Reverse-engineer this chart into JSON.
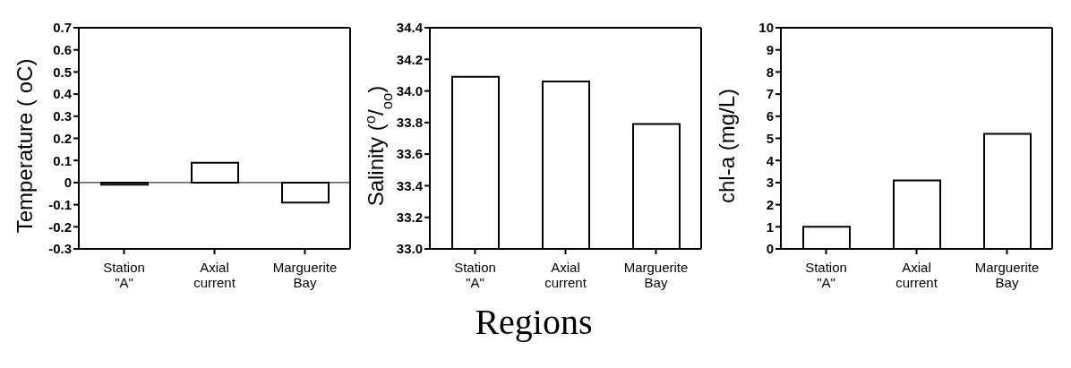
{
  "chart_data": [
    {
      "type": "bar",
      "ylabel": "Temperature ( oC)",
      "categories": [
        "Station \"A\"",
        "Axial current",
        "Marguerite Bay"
      ],
      "values": [
        -0.01,
        0.09,
        -0.09
      ],
      "color": "#ffffff",
      "ylim": [
        -0.3,
        0.7
      ],
      "yticks": [
        -0.3,
        -0.2,
        -0.1,
        0,
        0.1,
        0.2,
        0.3,
        0.4,
        0.5,
        0.6,
        0.7
      ],
      "ref_lines": [
        {
          "axis": "y",
          "value": 0
        }
      ],
      "grid": false,
      "legend": false
    },
    {
      "type": "bar",
      "ylabel": "Salinity ($^{o}$/$_{oo}$)",
      "xlabel": "Regions",
      "categories": [
        "Station \"A\"",
        "Axial current",
        "Marguerite Bay"
      ],
      "values": [
        34.09,
        34.06,
        33.79
      ],
      "color": "#ffffff",
      "ylim": [
        33.0,
        34.4
      ],
      "yticks": [
        {
          "value": 33.0,
          "label": "33.0"
        },
        {
          "value": 33.2,
          "label": "33.2"
        },
        {
          "value": 33.4,
          "label": "33.4"
        },
        {
          "value": 33.6,
          "label": "33.6"
        },
        {
          "value": 33.8,
          "label": "33.8"
        },
        {
          "value": 34.0,
          "label": "34.0"
        },
        {
          "value": 34.2,
          "label": "34.2"
        },
        {
          "value": 34.4,
          "label": "34.4"
        }
      ],
      "grid": false,
      "legend": false
    },
    {
      "type": "bar",
      "ylabel": "chl-a (mg/L)",
      "categories": [
        "Station \"A\"",
        "Axial current",
        "Marguerite Bay"
      ],
      "values": [
        1.0,
        3.1,
        5.2
      ],
      "color": "#ffffff",
      "ylim": [
        0,
        10
      ],
      "yticks": [
        0,
        1,
        2,
        3,
        4,
        5,
        6,
        7,
        8,
        9,
        10
      ],
      "grid": false,
      "legend": false
    }
  ]
}
